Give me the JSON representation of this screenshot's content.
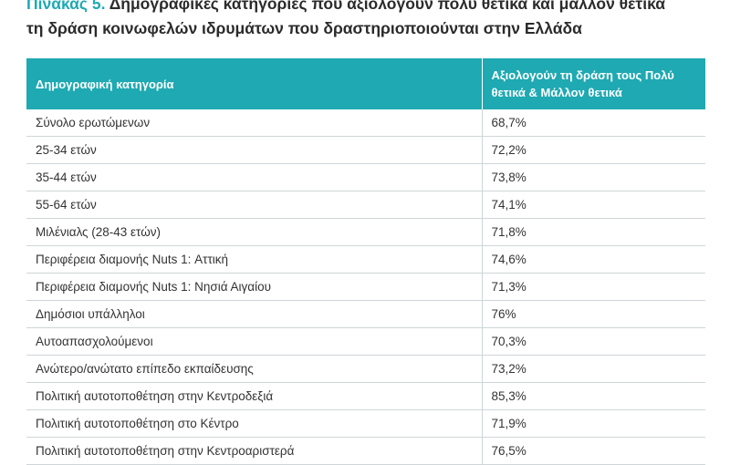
{
  "title": {
    "label": "Πίνακας 5.",
    "line1": "Δημογραφικές κατηγορίες που αξιολογούν πολύ θετικά και μάλλον θετικά",
    "line2": "τη δράση κοινωφελών ιδρυμάτων που δραστηριοποιούνται στην Ελλάδα"
  },
  "table": {
    "headers": [
      "Δημογραφική κατηγορία",
      "Αξιολογούν τη δράση τους Πολύ θετικά & Μάλλον θετικά"
    ],
    "rows": [
      [
        "Σύνολο ερωτώμενων",
        "68,7%"
      ],
      [
        "25-34 ετών",
        "72,2%"
      ],
      [
        "35-44 ετών",
        "73,8%"
      ],
      [
        "55-64 ετών",
        "74,1%"
      ],
      [
        "Μιλένιαλς (28-43 ετών)",
        "71,8%"
      ],
      [
        "Περιφέρεια διαμονής Nuts 1: Αττική",
        "74,6%"
      ],
      [
        "Περιφέρεια διαμονής Nuts 1: Νησιά Αιγαίου",
        "71,3%"
      ],
      [
        "Δημόσιοι υπάλληλοι",
        "76%"
      ],
      [
        "Αυτοαπασχολούμενοι",
        "70,3%"
      ],
      [
        "Ανώτερο/ανώτατο επίπεδο εκπαίδευσης",
        "73,2%"
      ],
      [
        "Πολιτική αυτοτοποθέτηση στην Κεντροδεξιά",
        "85,3%"
      ],
      [
        "Πολιτική αυτοτοποθέτηση στο Κέντρο",
        "71,9%"
      ],
      [
        "Πολιτική αυτοτοποθέτηση στην Κεντροαριστερά",
        "76,5%"
      ]
    ]
  }
}
